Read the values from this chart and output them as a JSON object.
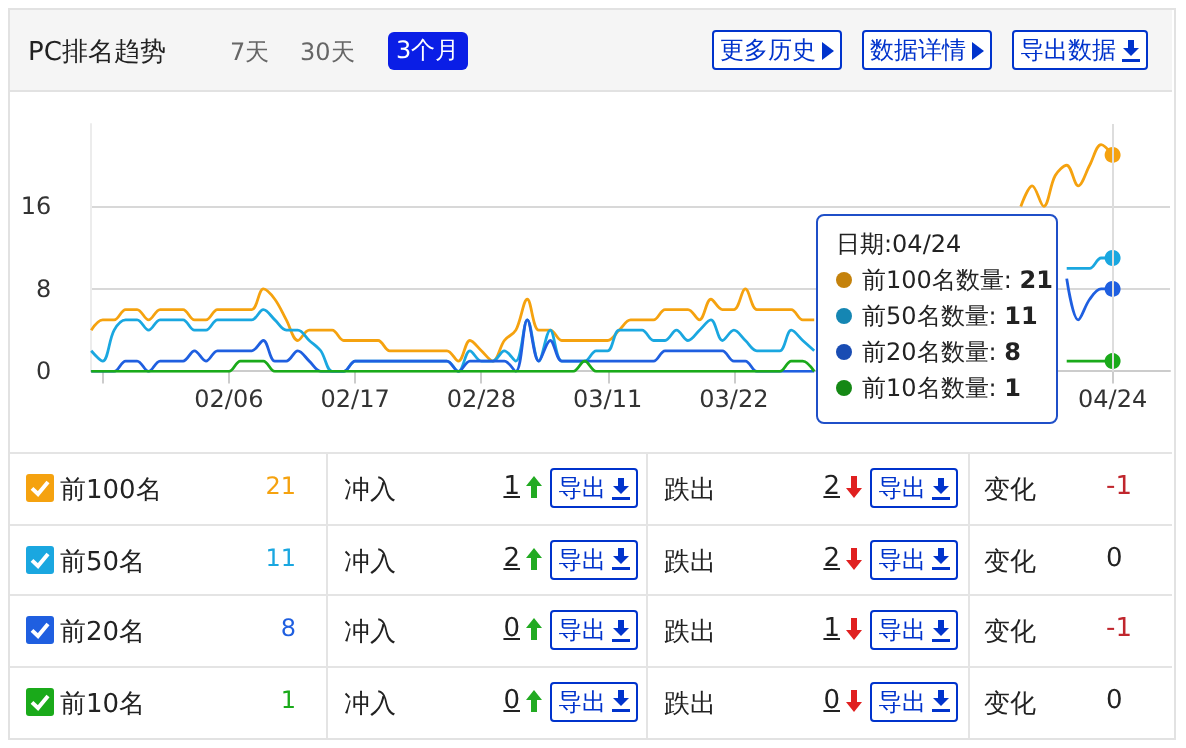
{
  "chart_data": {
    "type": "line",
    "title": "PC排名趋势",
    "x": [
      "--01-25",
      "--01-26",
      "--01-27",
      "--01-28",
      "--01-29",
      "--01-30",
      "--01-31",
      "--02-01",
      "--02-02",
      "--02-03",
      "--02-04",
      "--02-05",
      "--02-06",
      "--02-07",
      "--02-08",
      "--02-09",
      "--02-10",
      "--02-11",
      "--02-12",
      "--02-13",
      "--02-14",
      "--02-15",
      "--02-16",
      "--02-17",
      "--02-18",
      "--02-19",
      "--02-20",
      "--02-21",
      "--02-22",
      "--02-23",
      "--02-24",
      "--02-25",
      "--02-26",
      "--02-27",
      "--02-28",
      "--03-01",
      "--03-02",
      "--03-03",
      "--03-04",
      "--03-05",
      "--03-06",
      "--03-07",
      "--03-08",
      "--03-09",
      "--03-10",
      "--03-11",
      "--03-12",
      "--03-13",
      "--03-14",
      "--03-15",
      "--03-16",
      "--03-17",
      "--03-18",
      "--03-19",
      "--03-20",
      "--03-21",
      "--03-22",
      "--03-23",
      "--03-24",
      "--03-25",
      "--03-26",
      "--03-27",
      "--03-28",
      "--03-29",
      "--03-30",
      "--03-31",
      "--04-01",
      "--04-02",
      "--04-03",
      "--04-04",
      "--04-05",
      "--04-06",
      "--04-07",
      "--04-08",
      "--04-09",
      "--04-10",
      "--04-11",
      "--04-12",
      "--04-13",
      "--04-14",
      "--04-15",
      "--04-16",
      "--04-17",
      "--04-18",
      "--04-19",
      "--04-20",
      "--04-21",
      "--04-22",
      "--04-23",
      "--04-24"
    ],
    "series": [
      {
        "name": "前100名",
        "color": "#f5a20f",
        "values": [
          4,
          5,
          5,
          6,
          6,
          5,
          6,
          6,
          6,
          5,
          5,
          6,
          6,
          6,
          6,
          8,
          7,
          5,
          3,
          4,
          4,
          4,
          3,
          3,
          3,
          3,
          2,
          2,
          2,
          2,
          2,
          2,
          1,
          3,
          2,
          1,
          3,
          4,
          7,
          4,
          4,
          3,
          3,
          3,
          3,
          3,
          4,
          5,
          5,
          5,
          6,
          6,
          6,
          5,
          7,
          6,
          6,
          8,
          6,
          6,
          6,
          6,
          5,
          5,
          null,
          null,
          null,
          null,
          null,
          null,
          null,
          null,
          null,
          null,
          null,
          null,
          null,
          null,
          null,
          null,
          null,
          16,
          18,
          16,
          19,
          20,
          18,
          20,
          22,
          21
        ]
      },
      {
        "name": "前50名",
        "color": "#1aa7e0",
        "values": [
          2,
          1,
          4,
          5,
          5,
          4,
          5,
          5,
          5,
          4,
          4,
          5,
          5,
          5,
          5,
          6,
          5,
          4,
          4,
          3,
          2,
          0,
          0,
          1,
          1,
          1,
          1,
          1,
          1,
          1,
          1,
          1,
          0,
          2,
          1,
          1,
          2,
          1,
          5,
          1,
          4,
          1,
          1,
          1,
          2,
          2,
          4,
          4,
          4,
          3,
          3,
          4,
          3,
          4,
          5,
          3,
          4,
          3,
          2,
          2,
          2,
          4,
          3,
          2,
          null,
          null,
          null,
          null,
          null,
          null,
          null,
          null,
          null,
          null,
          null,
          null,
          null,
          null,
          null,
          null,
          null,
          null,
          null,
          null,
          null,
          10,
          10,
          10,
          11,
          11
        ]
      },
      {
        "name": "前20名",
        "color": "#1f5fe0",
        "values": [
          0,
          0,
          0,
          1,
          1,
          0,
          1,
          1,
          1,
          2,
          1,
          2,
          2,
          2,
          2,
          3,
          1,
          1,
          2,
          1,
          0,
          0,
          0,
          1,
          1,
          1,
          1,
          1,
          1,
          1,
          1,
          1,
          0,
          1,
          1,
          1,
          1,
          0,
          5,
          1,
          3,
          1,
          1,
          1,
          1,
          1,
          1,
          1,
          1,
          1,
          2,
          2,
          2,
          2,
          2,
          2,
          1,
          1,
          0,
          0,
          0,
          0,
          0,
          0,
          null,
          null,
          null,
          null,
          null,
          null,
          null,
          null,
          null,
          null,
          null,
          null,
          null,
          null,
          null,
          null,
          null,
          null,
          null,
          null,
          null,
          9,
          5,
          7,
          8,
          8
        ]
      },
      {
        "name": "前10名",
        "color": "#1aaa1a",
        "values": [
          0,
          0,
          0,
          0,
          0,
          0,
          0,
          0,
          0,
          0,
          0,
          0,
          0,
          1,
          1,
          1,
          0,
          0,
          0,
          0,
          0,
          0,
          0,
          0,
          0,
          0,
          0,
          0,
          0,
          0,
          0,
          0,
          0,
          0,
          0,
          0,
          0,
          0,
          0,
          0,
          0,
          0,
          0,
          1,
          0,
          0,
          0,
          0,
          0,
          0,
          0,
          0,
          0,
          0,
          0,
          0,
          0,
          0,
          0,
          0,
          0,
          1,
          1,
          0,
          null,
          null,
          null,
          null,
          null,
          null,
          null,
          null,
          null,
          null,
          null,
          null,
          null,
          null,
          null,
          null,
          null,
          null,
          null,
          null,
          null,
          1,
          1,
          1,
          1,
          1
        ]
      }
    ],
    "xlim": [
      "--01-25",
      "--04-29"
    ],
    "xticks": [
      {
        "value": "--01-26",
        "label": null
      },
      {
        "value": "--02-06",
        "label": "02/06"
      },
      {
        "value": "--02-17",
        "label": "02/17"
      },
      {
        "value": "--02-28",
        "label": "02/28"
      },
      {
        "value": "--03-11",
        "label": "03/11"
      },
      {
        "value": "--03-22",
        "label": "03/22"
      },
      {
        "value": "--04-24",
        "label": "04/24"
      }
    ],
    "ref_lines": [
      {
        "axis": "x",
        "value": "--04-24",
        "color": "#dddddd"
      }
    ],
    "ylim": [
      0,
      24
    ],
    "yticks": [
      0,
      8,
      16
    ],
    "grid": "y",
    "legend": "bottom",
    "marker": "none",
    "annotations": [
      "7天",
      "30天",
      "3个月",
      "更多历史",
      "数据详情",
      "导出数据",
      "日期:04/24",
      "前100名数量: 21",
      "前50名数量: 11",
      "前20名数量: 8",
      "前10名数量: 1",
      "21",
      "冲入",
      "1",
      "导出",
      "跌出",
      "2",
      "导出",
      "变化",
      "-1",
      "11",
      "冲入",
      "2",
      "导出",
      "跌出",
      "2",
      "导出",
      "变化",
      "0",
      "8",
      "冲入",
      "0",
      "导出",
      "跌出",
      "1",
      "导出",
      "变化",
      "-1",
      "1",
      "冲入",
      "0",
      "导出",
      "跌出",
      "0",
      "导出",
      "变化",
      "0"
    ]
  }
}
